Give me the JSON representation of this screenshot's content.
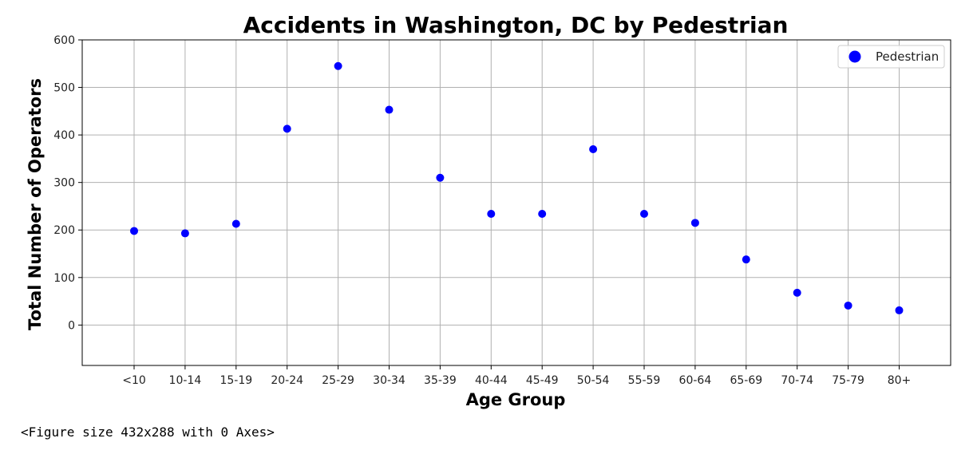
{
  "chart_data": {
    "type": "scatter",
    "title": "Accidents in Washington, DC by Pedestrian",
    "xlabel": "Age Group",
    "ylabel": "Total Number of Operators",
    "categories": [
      "<10",
      "10-14",
      "15-19",
      "20-24",
      "25-29",
      "30-34",
      "35-39",
      "40-44",
      "45-49",
      "50-54",
      "55-59",
      "60-64",
      "65-69",
      "70-74",
      "75-79",
      "80+"
    ],
    "series": [
      {
        "name": "Pedestrian",
        "color": "#0000ff",
        "values": [
          198,
          193,
          213,
          413,
          545,
          453,
          310,
          234,
          234,
          370,
          234,
          215,
          138,
          68,
          41,
          31
        ]
      }
    ],
    "ylim": [
      -85,
      600
    ],
    "yticks": [
      0,
      100,
      200,
      300,
      400,
      500,
      600
    ],
    "grid": true,
    "legend_position": "top-right"
  },
  "caption": "<Figure size 432x288 with 0 Axes>"
}
